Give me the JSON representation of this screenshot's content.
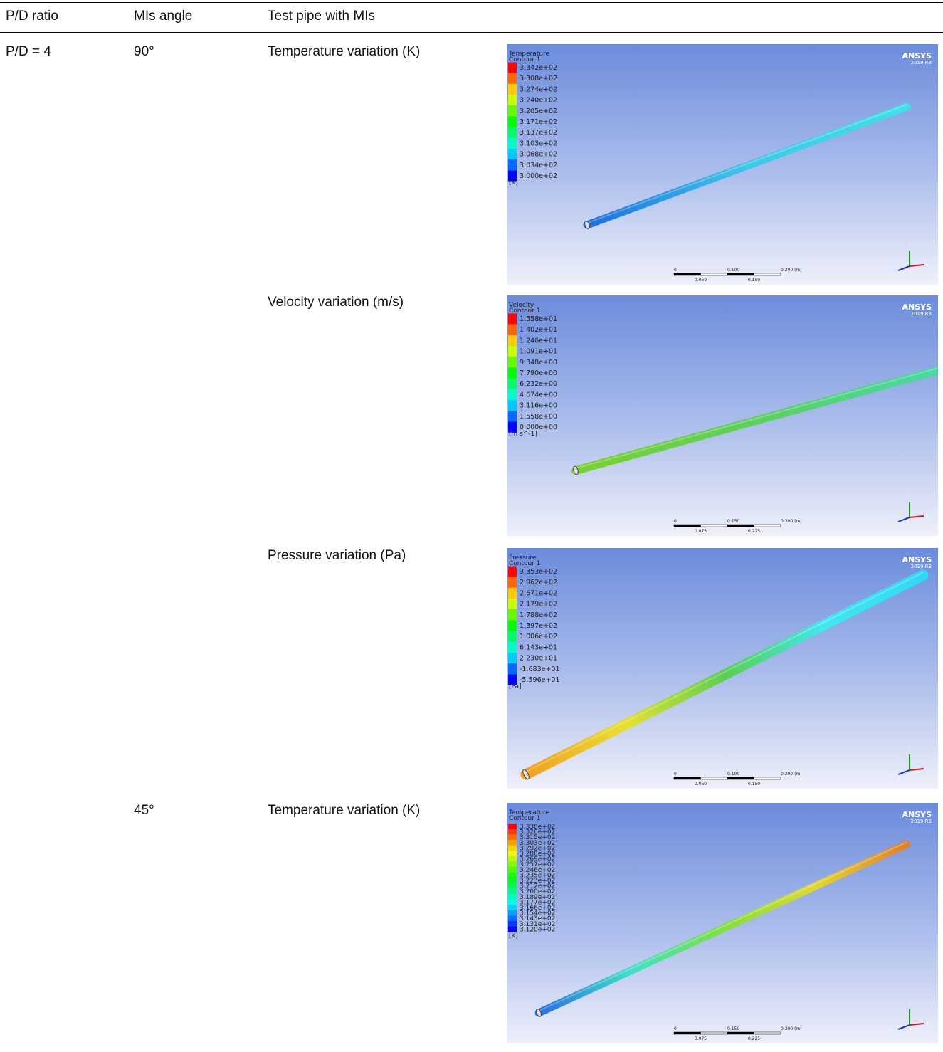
{
  "table": {
    "header": [
      "P/D ratio",
      "MIs angle",
      "Test pipe with MIs"
    ],
    "rows": [
      {
        "pd": "P/D = 4",
        "angle": "90°",
        "property": "Temperature variation (K)",
        "contour": {
          "variable": "Temperature",
          "name": "Contour 1",
          "levels": [
            "3.342e+02",
            "3.308e+02",
            "3.274e+02",
            "3.240e+02",
            "3.205e+02",
            "3.171e+02",
            "3.137e+02",
            "3.103e+02",
            "3.068e+02",
            "3.034e+02",
            "3.000e+02"
          ],
          "unit": "[K]",
          "brand": "ANSYS",
          "version": "2019 R3",
          "scale_top": [
            "0",
            "0.100",
            "0.200 (m)"
          ],
          "scale_bottom": [
            "0.050",
            "0.150"
          ],
          "axes": [
            "Y",
            "Z",
            "X"
          ]
        }
      },
      {
        "property": "Velocity variation (m/s)",
        "contour": {
          "variable": "Velocity",
          "name": "Contour 1",
          "levels": [
            "1.558e+01",
            "1.402e+01",
            "1.246e+01",
            "1.091e+01",
            "9.348e+00",
            "7.790e+00",
            "6.232e+00",
            "4.674e+00",
            "3.116e+00",
            "1.558e+00",
            "0.000e+00"
          ],
          "unit": "[m s^-1]",
          "brand": "ANSYS",
          "version": "2019 R3",
          "scale_top": [
            "0",
            "0.150",
            "0.300 (m)"
          ],
          "scale_bottom": [
            "0.075",
            "0.225"
          ],
          "axes": [
            "Y",
            "Z",
            "X"
          ]
        }
      },
      {
        "property": "Pressure variation (Pa)",
        "contour": {
          "variable": "Pressure",
          "name": "Contour 1",
          "levels": [
            "3.353e+02",
            "2.962e+02",
            "2.571e+02",
            "2.179e+02",
            "1.788e+02",
            "1.397e+02",
            "1.006e+02",
            "6.143e+01",
            "2.230e+01",
            "-1.683e+01",
            "-5.596e+01"
          ],
          "unit": "[Pa]",
          "brand": "ANSYS",
          "version": "2019 R3",
          "scale_top": [
            "0",
            "0.100",
            "0.200 (m)"
          ],
          "scale_bottom": [
            "0.050",
            "0.150"
          ],
          "axes": [
            "Y",
            "Z",
            "X"
          ]
        }
      },
      {
        "angle": "45°",
        "property": "Temperature variation (K)",
        "contour": {
          "variable": "Temperature",
          "name": "Contour 1",
          "levels": [
            "3.338e+02",
            "3.326e+02",
            "3.315e+02",
            "3.303e+02",
            "3.292e+02",
            "3.280e+02",
            "3.269e+02",
            "3.257e+02",
            "3.246e+02",
            "3.235e+02",
            "3.223e+02",
            "3.212e+02",
            "3.200e+02",
            "3.189e+02",
            "3.177e+02",
            "3.166e+02",
            "3.154e+02",
            "3.143e+02",
            "3.131e+02",
            "3.120e+02"
          ],
          "unit": "[K]",
          "brand": "ANSYS",
          "version": "2019 R3",
          "scale_top": [
            "0",
            "0.150",
            "0.300 (m)"
          ],
          "scale_bottom": [
            "0.075",
            "0.225"
          ],
          "axes": [
            "Y",
            "Z",
            "X"
          ]
        }
      }
    ]
  }
}
